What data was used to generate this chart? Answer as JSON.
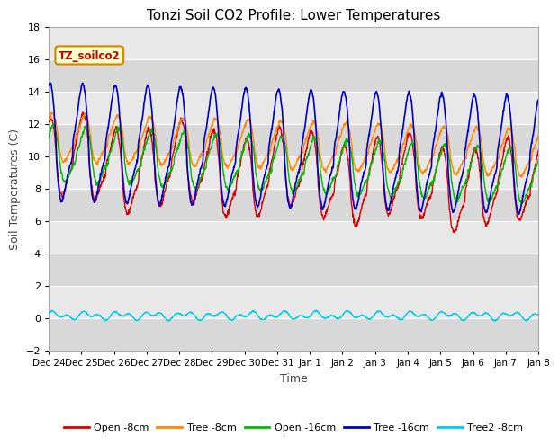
{
  "title": "Tonzi Soil CO2 Profile: Lower Temperatures",
  "xlabel": "Time",
  "ylabel": "Soil Temperatures (C)",
  "ylim": [
    -2,
    18
  ],
  "yticks": [
    -2,
    0,
    2,
    4,
    6,
    8,
    10,
    12,
    14,
    16,
    18
  ],
  "xlim": [
    0,
    15
  ],
  "xtick_labels": [
    "Dec 24",
    "Dec 25",
    "Dec 26",
    "Dec 27",
    "Dec 28",
    "Dec 29",
    "Dec 30",
    "Dec 31",
    "Jan 1",
    "Jan 2",
    "Jan 3",
    "Jan 4",
    "Jan 5",
    "Jan 6",
    "Jan 7",
    "Jan 8"
  ],
  "plot_bg": "#e8e8e8",
  "fig_bg": "#ffffff",
  "band_light": "#e8e8e8",
  "band_dark": "#d8d8d8",
  "series_colors": {
    "open8": "#dd0000",
    "tree8": "#ff8800",
    "open16": "#00bb00",
    "tree16": "#0000cc",
    "tree2": "#00ccee"
  },
  "legend_labels": [
    "Open -8cm",
    "Tree -8cm",
    "Open -16cm",
    "Tree -16cm",
    "Tree2 -8cm"
  ],
  "watermark_text": "TZ_soilco2",
  "watermark_color": "#cc0000",
  "watermark_bg": "#ffffcc",
  "watermark_border": "#cc8800"
}
